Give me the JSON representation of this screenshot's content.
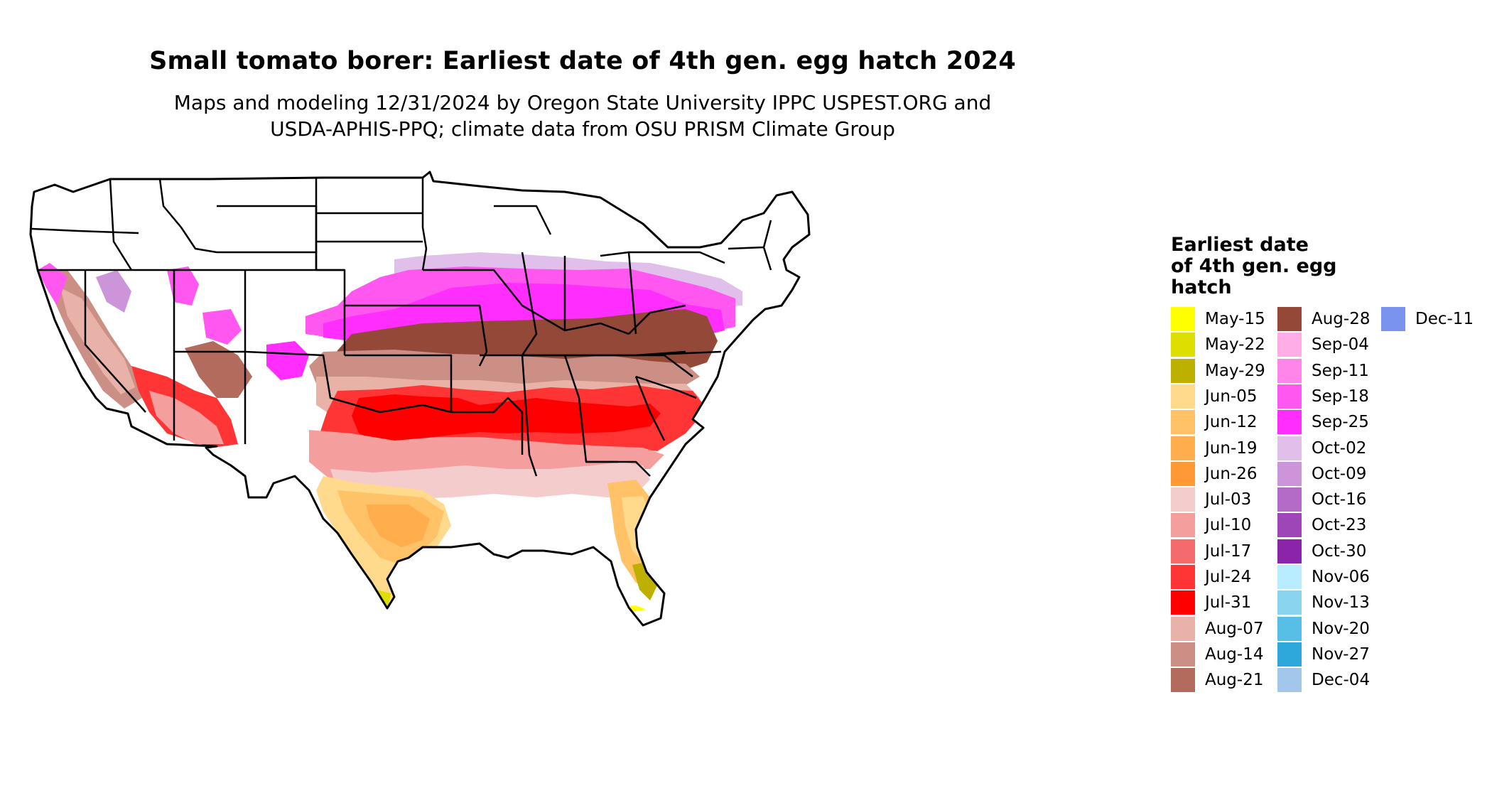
{
  "title": "Small tomato borer: Earliest date of 4th gen. egg hatch 2024",
  "subtitle_line1": "Maps and modeling 12/31/2024 by Oregon State University IPPC USPEST.ORG and",
  "subtitle_line2": "USDA-APHIS-PPQ; climate data from OSU PRISM Climate Group",
  "legend": {
    "title_line1": "Earliest date",
    "title_line2": "of 4th gen. egg",
    "title_line3": "hatch",
    "items": [
      {
        "label": "May-15",
        "color": "#ffff00"
      },
      {
        "label": "May-22",
        "color": "#dede00"
      },
      {
        "label": "May-29",
        "color": "#bdb000"
      },
      {
        "label": "Jun-05",
        "color": "#ffd98c"
      },
      {
        "label": "Jun-12",
        "color": "#ffc266"
      },
      {
        "label": "Jun-19",
        "color": "#ffad4d"
      },
      {
        "label": "Jun-26",
        "color": "#ff9933"
      },
      {
        "label": "Jul-03",
        "color": "#f5cccc"
      },
      {
        "label": "Jul-10",
        "color": "#f59e9e"
      },
      {
        "label": "Jul-17",
        "color": "#f56b6b"
      },
      {
        "label": "Jul-24",
        "color": "#ff3535"
      },
      {
        "label": "Jul-31",
        "color": "#ff0000"
      },
      {
        "label": "Aug-07",
        "color": "#e8b2a8"
      },
      {
        "label": "Aug-14",
        "color": "#cc8f85"
      },
      {
        "label": "Aug-21",
        "color": "#b36b5e"
      },
      {
        "label": "Aug-28",
        "color": "#944838"
      },
      {
        "label": "Sep-04",
        "color": "#ffade6"
      },
      {
        "label": "Sep-11",
        "color": "#ff85eb"
      },
      {
        "label": "Sep-18",
        "color": "#ff57f0"
      },
      {
        "label": "Sep-25",
        "color": "#ff2eff"
      },
      {
        "label": "Oct-02",
        "color": "#e0bfeb"
      },
      {
        "label": "Oct-09",
        "color": "#cc94d9"
      },
      {
        "label": "Oct-16",
        "color": "#b36bc7"
      },
      {
        "label": "Oct-23",
        "color": "#9e45b8"
      },
      {
        "label": "Oct-30",
        "color": "#8a24a8"
      },
      {
        "label": "Nov-06",
        "color": "#b8edff"
      },
      {
        "label": "Nov-13",
        "color": "#8ad4f0"
      },
      {
        "label": "Nov-20",
        "color": "#57bfe6"
      },
      {
        "label": "Nov-27",
        "color": "#2ea8db"
      },
      {
        "label": "Dec-04",
        "color": "#a3c7eb"
      },
      {
        "label": "Dec-11",
        "color": "#7a94ed"
      }
    ]
  },
  "colors": {
    "may15": "#ffff00",
    "may22": "#dede00",
    "may29": "#bdb000",
    "jun05": "#ffd98c",
    "jun12": "#ffc266",
    "jun19": "#ffad4d",
    "jun26": "#ff9933",
    "jul03": "#f5cccc",
    "jul10": "#f59e9e",
    "jul17": "#f56b6b",
    "jul24": "#ff3535",
    "jul31": "#ff0000",
    "aug07": "#e8b2a8",
    "aug14": "#cc8f85",
    "aug21": "#b36b5e",
    "aug28": "#944838",
    "sep04": "#ffade6",
    "sep11": "#ff85eb",
    "sep18": "#ff57f0",
    "sep25": "#ff2eff",
    "oct02": "#e0bfeb",
    "oct09": "#cc94d9",
    "nov27": "#2ea8db",
    "no_hatch": "#ffffff",
    "border": "#000000"
  }
}
